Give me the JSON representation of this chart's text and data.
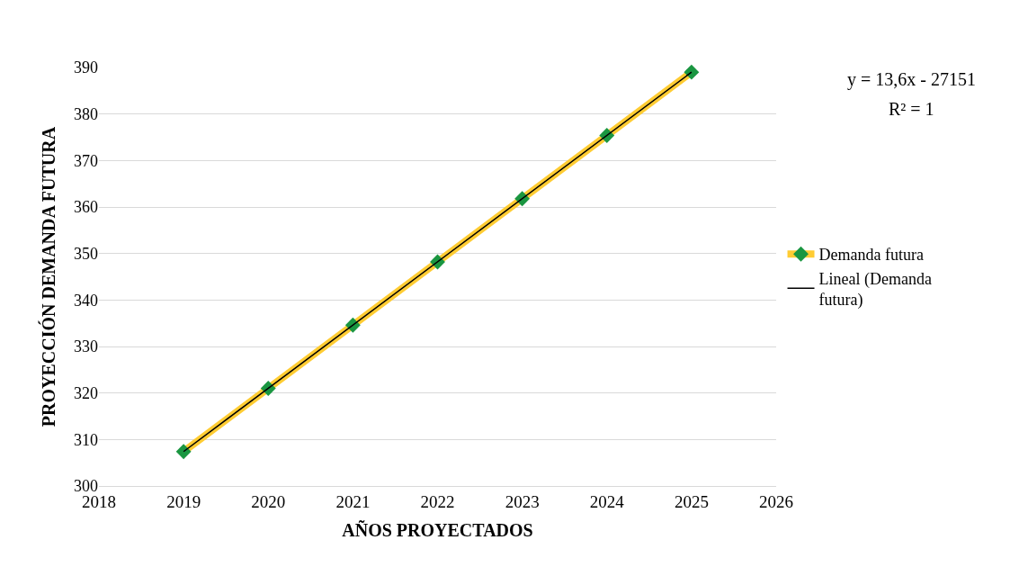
{
  "chart_data": {
    "type": "line",
    "xlabel": "AÑOS PROYECTADOS",
    "ylabel": "PROYECCIÓN DEMANDA FUTURA",
    "x": [
      2019,
      2020,
      2021,
      2022,
      2023,
      2024,
      2025
    ],
    "series": [
      {
        "name": "Demanda futura",
        "color": "#ffcc33",
        "colors": [
          "#1a9641",
          "#1a9641",
          "#1a9641",
          "#1a9641",
          "#1a9641",
          "#1a9641",
          "#1a9641"
        ],
        "marker": "diamond",
        "values": [
          307.4,
          321.0,
          334.6,
          348.2,
          361.8,
          375.4,
          389.0
        ]
      },
      {
        "name": "Lineal (Demanda futura)",
        "color": "#000000",
        "marker": "none",
        "x": [
          2019,
          2025
        ],
        "values": [
          307.4,
          389.0
        ]
      }
    ],
    "xlim": [
      2018,
      2026
    ],
    "xticks": [
      2018,
      2019,
      2020,
      2021,
      2022,
      2023,
      2024,
      2025,
      2026
    ],
    "ylim": [
      300,
      390
    ],
    "yticks": [
      300,
      310,
      320,
      330,
      340,
      350,
      360,
      370,
      380,
      390
    ],
    "grid": "y",
    "legend": "right",
    "line_style": "solid",
    "annotations": [
      "y = 13,6x - 27151",
      "R² = 1"
    ]
  }
}
